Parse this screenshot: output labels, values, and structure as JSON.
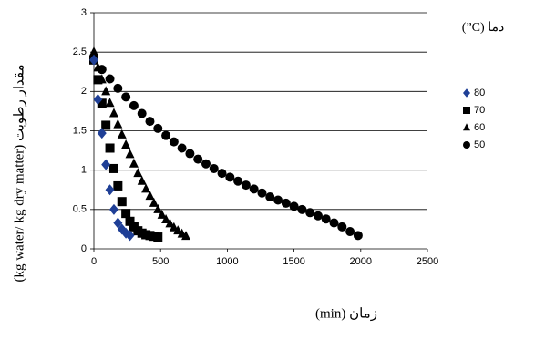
{
  "chart_data": {
    "type": "scatter",
    "x_label": "(min) زمان",
    "y_label": "(kg water/ kg dry matter) مقدار رطوبت",
    "legend_title": "(”C) دما",
    "xlim": [
      0,
      2500
    ],
    "xticks": [
      0,
      500,
      1000,
      1500,
      2000,
      2500
    ],
    "ylim": [
      0,
      3
    ],
    "yticks": [
      0,
      0.5,
      1,
      1.5,
      2,
      2.5,
      3
    ],
    "grid": true,
    "legend": "right",
    "series": [
      {
        "name": "80",
        "color": "#1f3f96",
        "marker": "diamond",
        "x": [
          0,
          30,
          60,
          90,
          120,
          150,
          180,
          210,
          240,
          270
        ],
        "values": [
          2.4,
          1.9,
          1.47,
          1.07,
          0.75,
          0.5,
          0.33,
          0.25,
          0.2,
          0.17
        ]
      },
      {
        "name": "70",
        "color": "#000000",
        "marker": "square",
        "x": [
          0,
          30,
          60,
          90,
          120,
          150,
          180,
          210,
          240,
          270,
          300,
          330,
          360,
          390,
          420,
          450,
          480
        ],
        "values": [
          2.4,
          2.15,
          1.85,
          1.57,
          1.28,
          1.02,
          0.8,
          0.6,
          0.45,
          0.35,
          0.28,
          0.23,
          0.2,
          0.18,
          0.17,
          0.16,
          0.15
        ]
      },
      {
        "name": "60",
        "color": "#000000",
        "marker": "triangle",
        "x": [
          0,
          30,
          60,
          90,
          120,
          150,
          180,
          210,
          240,
          270,
          300,
          330,
          360,
          390,
          420,
          450,
          480,
          510,
          540,
          570,
          600,
          630,
          660,
          690
        ],
        "values": [
          2.5,
          2.3,
          2.15,
          2.0,
          1.85,
          1.72,
          1.58,
          1.45,
          1.32,
          1.2,
          1.08,
          0.96,
          0.86,
          0.76,
          0.67,
          0.58,
          0.5,
          0.43,
          0.37,
          0.32,
          0.27,
          0.23,
          0.19,
          0.16
        ]
      },
      {
        "name": "50",
        "color": "#000000",
        "marker": "circle",
        "x": [
          0,
          60,
          120,
          180,
          240,
          300,
          360,
          420,
          480,
          540,
          600,
          660,
          720,
          780,
          840,
          900,
          960,
          1020,
          1080,
          1140,
          1200,
          1260,
          1320,
          1380,
          1440,
          1500,
          1560,
          1620,
          1680,
          1740,
          1800,
          1860,
          1920,
          1980
        ],
        "values": [
          2.4,
          2.28,
          2.16,
          2.04,
          1.93,
          1.82,
          1.72,
          1.62,
          1.53,
          1.44,
          1.36,
          1.28,
          1.21,
          1.14,
          1.08,
          1.02,
          0.96,
          0.91,
          0.86,
          0.81,
          0.76,
          0.71,
          0.66,
          0.62,
          0.58,
          0.54,
          0.5,
          0.46,
          0.42,
          0.38,
          0.33,
          0.28,
          0.22,
          0.17
        ]
      }
    ]
  }
}
